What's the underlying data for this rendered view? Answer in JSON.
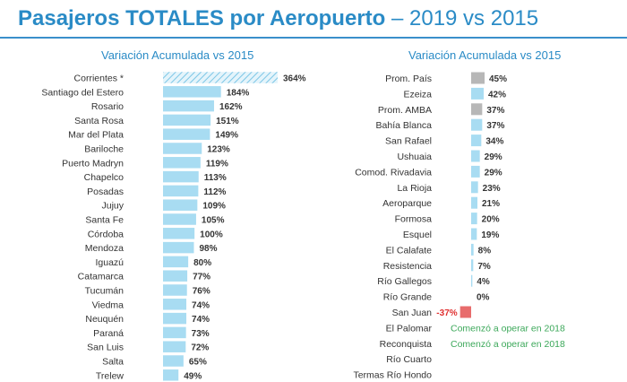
{
  "header": {
    "title_bold": "Pasajeros TOTALES por Aeropuerto",
    "title_light": " – 2019 vs 2015"
  },
  "colors": {
    "bar": "#a8dcf2",
    "bar_hatched": "#a8dcf2",
    "bar_gray": "#b7b7b7",
    "bar_negative": "#e86c6c",
    "note": "#3ca85a",
    "negative_label": "#e03030"
  },
  "chart_data": [
    {
      "type": "bar",
      "orientation": "horizontal",
      "title": "Variación Acumulada vs 2015",
      "unit": "%",
      "categories": [
        "Corrientes *",
        "Santiago del Estero",
        "Rosario",
        "Santa Rosa",
        "Mar del Plata",
        "Bariloche",
        "Puerto Madryn",
        "Chapelco",
        "Posadas",
        "Jujuy",
        "Santa Fe",
        "Córdoba",
        "Mendoza",
        "Iguazú",
        "Catamarca",
        "Tucumán",
        "Viedma",
        "Neuquén",
        "Paraná",
        "San Luis",
        "Salta",
        "Trelew"
      ],
      "values": [
        364,
        184,
        162,
        151,
        149,
        123,
        119,
        113,
        112,
        109,
        105,
        100,
        98,
        80,
        77,
        76,
        74,
        74,
        73,
        72,
        65,
        49
      ],
      "value_labels": [
        "364%",
        "184%",
        "162%",
        "151%",
        "149%",
        "123%",
        "119%",
        "113%",
        "112%",
        "109%",
        "105%",
        "100%",
        "98%",
        "80%",
        "77%",
        "76%",
        "74%",
        "74%",
        "73%",
        "72%",
        "65%",
        "49%"
      ],
      "styles": [
        "hatched",
        "normal",
        "normal",
        "normal",
        "normal",
        "normal",
        "normal",
        "normal",
        "normal",
        "normal",
        "normal",
        "normal",
        "normal",
        "normal",
        "normal",
        "normal",
        "normal",
        "normal",
        "normal",
        "normal",
        "normal",
        "normal"
      ],
      "xlim": [
        0,
        364
      ],
      "grid": false,
      "axes_visible": false
    },
    {
      "type": "bar",
      "orientation": "horizontal",
      "title": "Variación Acumulada vs 2015",
      "unit": "%",
      "categories": [
        "Prom. País",
        "Ezeiza",
        "Prom. AMBA",
        "Bahía Blanca",
        "San Rafael",
        "Ushuaia",
        "Comod. Rivadavia",
        "La Rioja",
        "Aeroparque",
        "Formosa",
        "Esquel",
        "El Calafate",
        "Resistencia",
        "Río Gallegos",
        "Río Grande",
        "San Juan",
        "El Palomar",
        "Reconquista",
        "Río Cuarto",
        "Termas Río Hondo"
      ],
      "values": [
        45,
        42,
        37,
        37,
        34,
        29,
        29,
        23,
        21,
        20,
        19,
        8,
        7,
        4,
        0,
        -37,
        null,
        null,
        null,
        null
      ],
      "value_labels": [
        "45%",
        "42%",
        "37%",
        "37%",
        "34%",
        "29%",
        "29%",
        "23%",
        "21%",
        "20%",
        "19%",
        "8%",
        "7%",
        "4%",
        "0%",
        "-37%",
        "Comenzó a operar en 2018",
        "Comenzó a operar en 2018",
        "",
        ""
      ],
      "styles": [
        "gray",
        "normal",
        "gray",
        "normal",
        "normal",
        "normal",
        "normal",
        "normal",
        "normal",
        "normal",
        "normal",
        "normal",
        "normal",
        "normal",
        "normal",
        "negative",
        "note",
        "note",
        "none",
        "none"
      ],
      "xlim": [
        -37,
        45
      ],
      "grid": false,
      "axes_visible": false
    }
  ]
}
